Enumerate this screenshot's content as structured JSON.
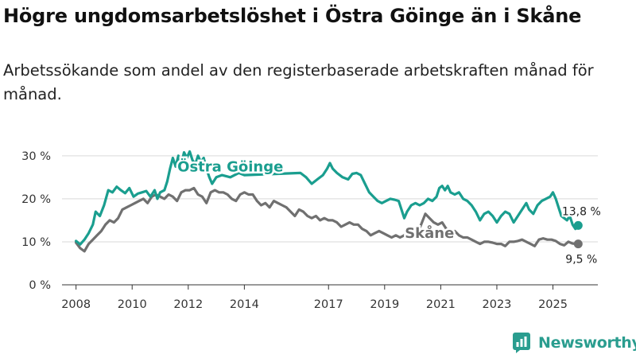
{
  "title": "Högre ungdomsarbetslöshet i Östra Göinge än i Skåne",
  "subtitle": "Arbetssökande som andel av den registerbaserade arbetskraften månad för månad.",
  "brand": {
    "name": "Newsworthy",
    "color": "#2a9d8f"
  },
  "chart_data": {
    "type": "line",
    "x_range": [
      2007.5,
      2026.6
    ],
    "ylim": [
      0,
      32
    ],
    "y_ticks": [
      0,
      10,
      20,
      30
    ],
    "y_tick_labels": [
      "0 %",
      "10 %",
      "20 %",
      "30 %"
    ],
    "x_ticks": [
      2008,
      2010,
      2012,
      2014,
      2017,
      2019,
      2021,
      2023,
      2025
    ],
    "x_tick_labels": [
      "2008",
      "2010",
      "2012",
      "2014",
      "2017",
      "2019",
      "2021",
      "2023",
      "2025"
    ],
    "grid": true,
    "series": [
      {
        "name": "Östra Göinge",
        "color": "#1a9e8f",
        "end_label": "13,8 %",
        "points": [
          [
            2008.0,
            10.2
          ],
          [
            2008.15,
            9.4
          ],
          [
            2008.3,
            10.5
          ],
          [
            2008.45,
            12.0
          ],
          [
            2008.6,
            14.0
          ],
          [
            2008.7,
            17.0
          ],
          [
            2008.85,
            16.0
          ],
          [
            2009.0,
            18.5
          ],
          [
            2009.15,
            22.0
          ],
          [
            2009.3,
            21.5
          ],
          [
            2009.45,
            22.8
          ],
          [
            2009.6,
            22.0
          ],
          [
            2009.75,
            21.3
          ],
          [
            2009.9,
            22.5
          ],
          [
            2010.05,
            20.5
          ],
          [
            2010.2,
            21.2
          ],
          [
            2010.35,
            21.5
          ],
          [
            2010.5,
            21.8
          ],
          [
            2010.65,
            20.5
          ],
          [
            2010.8,
            22.0
          ],
          [
            2010.9,
            20.0
          ],
          [
            2011.0,
            21.5
          ],
          [
            2011.15,
            22.0
          ],
          [
            2011.25,
            24.0
          ],
          [
            2011.35,
            27.0
          ],
          [
            2011.45,
            29.5
          ],
          [
            2011.55,
            27.5
          ],
          [
            2011.65,
            30.0
          ],
          [
            2011.75,
            28.0
          ],
          [
            2011.85,
            30.8
          ],
          [
            2011.95,
            29.5
          ],
          [
            2012.05,
            31.0
          ],
          [
            2012.15,
            29.0
          ],
          [
            2012.25,
            28.0
          ],
          [
            2012.35,
            30.0
          ],
          [
            2012.45,
            28.5
          ],
          [
            2012.55,
            29.5
          ],
          [
            2012.65,
            27.0
          ],
          [
            2012.75,
            25.0
          ],
          [
            2012.85,
            23.5
          ],
          [
            2013.0,
            25.0
          ],
          [
            2013.2,
            25.5
          ],
          [
            2013.5,
            25.0
          ],
          [
            2013.8,
            26.0
          ],
          [
            2014.0,
            25.5
          ],
          [
            2016.0,
            26.0
          ],
          [
            2016.2,
            25.0
          ],
          [
            2016.4,
            23.5
          ],
          [
            2016.6,
            24.5
          ],
          [
            2016.8,
            25.5
          ],
          [
            2016.95,
            27.0
          ],
          [
            2017.05,
            28.3
          ],
          [
            2017.15,
            27.0
          ],
          [
            2017.3,
            26.0
          ],
          [
            2017.5,
            25.0
          ],
          [
            2017.7,
            24.5
          ],
          [
            2017.85,
            25.8
          ],
          [
            2018.0,
            26.0
          ],
          [
            2018.15,
            25.5
          ],
          [
            2018.3,
            23.5
          ],
          [
            2018.45,
            21.5
          ],
          [
            2018.6,
            20.5
          ],
          [
            2018.75,
            19.5
          ],
          [
            2018.9,
            19.0
          ],
          [
            2019.05,
            19.5
          ],
          [
            2019.2,
            20.0
          ],
          [
            2019.35,
            19.8
          ],
          [
            2019.5,
            19.5
          ],
          [
            2019.6,
            17.5
          ],
          [
            2019.7,
            15.5
          ],
          [
            2019.8,
            17.0
          ],
          [
            2019.95,
            18.5
          ],
          [
            2020.1,
            19.0
          ],
          [
            2020.25,
            18.5
          ],
          [
            2020.4,
            19.0
          ],
          [
            2020.55,
            20.0
          ],
          [
            2020.7,
            19.5
          ],
          [
            2020.85,
            20.5
          ],
          [
            2020.95,
            22.5
          ],
          [
            2021.05,
            23.0
          ],
          [
            2021.15,
            22.0
          ],
          [
            2021.25,
            23.0
          ],
          [
            2021.35,
            21.5
          ],
          [
            2021.5,
            21.0
          ],
          [
            2021.65,
            21.5
          ],
          [
            2021.8,
            20.0
          ],
          [
            2021.95,
            19.5
          ],
          [
            2022.1,
            18.5
          ],
          [
            2022.25,
            17.0
          ],
          [
            2022.4,
            15.0
          ],
          [
            2022.55,
            16.5
          ],
          [
            2022.7,
            17.0
          ],
          [
            2022.85,
            16.0
          ],
          [
            2023.0,
            14.5
          ],
          [
            2023.15,
            16.0
          ],
          [
            2023.3,
            17.0
          ],
          [
            2023.45,
            16.5
          ],
          [
            2023.6,
            14.5
          ],
          [
            2023.75,
            16.0
          ],
          [
            2023.9,
            17.5
          ],
          [
            2024.05,
            19.0
          ],
          [
            2024.15,
            17.5
          ],
          [
            2024.3,
            16.5
          ],
          [
            2024.45,
            18.5
          ],
          [
            2024.6,
            19.5
          ],
          [
            2024.75,
            20.0
          ],
          [
            2024.9,
            20.5
          ],
          [
            2025.0,
            21.5
          ],
          [
            2025.1,
            20.0
          ],
          [
            2025.2,
            18.0
          ],
          [
            2025.3,
            16.0
          ],
          [
            2025.4,
            15.5
          ],
          [
            2025.5,
            15.0
          ],
          [
            2025.6,
            16.0
          ],
          [
            2025.7,
            14.0
          ],
          [
            2025.8,
            13.0
          ],
          [
            2025.9,
            13.8
          ]
        ]
      },
      {
        "name": "Skåne",
        "color": "#707070",
        "end_label": "9,5 %",
        "points": [
          [
            2008.0,
            9.8
          ],
          [
            2008.15,
            8.5
          ],
          [
            2008.3,
            7.8
          ],
          [
            2008.45,
            9.5
          ],
          [
            2008.6,
            10.5
          ],
          [
            2008.75,
            11.5
          ],
          [
            2008.9,
            12.5
          ],
          [
            2009.05,
            14.0
          ],
          [
            2009.2,
            15.0
          ],
          [
            2009.35,
            14.5
          ],
          [
            2009.5,
            15.5
          ],
          [
            2009.65,
            17.5
          ],
          [
            2009.8,
            18.0
          ],
          [
            2009.95,
            18.5
          ],
          [
            2010.1,
            19.0
          ],
          [
            2010.25,
            19.5
          ],
          [
            2010.4,
            20.0
          ],
          [
            2010.55,
            19.0
          ],
          [
            2010.7,
            20.5
          ],
          [
            2010.85,
            21.0
          ],
          [
            2011.0,
            20.5
          ],
          [
            2011.15,
            20.0
          ],
          [
            2011.3,
            21.0
          ],
          [
            2011.45,
            20.5
          ],
          [
            2011.6,
            19.5
          ],
          [
            2011.75,
            21.5
          ],
          [
            2011.9,
            22.0
          ],
          [
            2012.05,
            22.0
          ],
          [
            2012.2,
            22.5
          ],
          [
            2012.35,
            21.0
          ],
          [
            2012.5,
            20.5
          ],
          [
            2012.65,
            19.0
          ],
          [
            2012.8,
            21.5
          ],
          [
            2012.95,
            22.0
          ],
          [
            2013.1,
            21.5
          ],
          [
            2013.25,
            21.5
          ],
          [
            2013.4,
            21.0
          ],
          [
            2013.55,
            20.0
          ],
          [
            2013.7,
            19.5
          ],
          [
            2013.85,
            21.0
          ],
          [
            2014.0,
            21.5
          ],
          [
            2014.15,
            21.0
          ],
          [
            2014.3,
            21.0
          ],
          [
            2014.45,
            19.5
          ],
          [
            2014.6,
            18.5
          ],
          [
            2014.75,
            19.0
          ],
          [
            2014.9,
            18.0
          ],
          [
            2015.05,
            19.5
          ],
          [
            2015.2,
            19.0
          ],
          [
            2015.35,
            18.5
          ],
          [
            2015.5,
            18.0
          ],
          [
            2015.65,
            17.0
          ],
          [
            2015.8,
            16.0
          ],
          [
            2015.95,
            17.5
          ],
          [
            2016.1,
            17.0
          ],
          [
            2016.25,
            16.0
          ],
          [
            2016.4,
            15.5
          ],
          [
            2016.55,
            16.0
          ],
          [
            2016.7,
            15.0
          ],
          [
            2016.85,
            15.5
          ],
          [
            2017.0,
            15.0
          ],
          [
            2017.15,
            15.0
          ],
          [
            2017.3,
            14.5
          ],
          [
            2017.45,
            13.5
          ],
          [
            2017.6,
            14.0
          ],
          [
            2017.75,
            14.5
          ],
          [
            2017.9,
            14.0
          ],
          [
            2018.05,
            14.0
          ],
          [
            2018.2,
            13.0
          ],
          [
            2018.35,
            12.5
          ],
          [
            2018.5,
            11.5
          ],
          [
            2018.65,
            12.0
          ],
          [
            2018.8,
            12.5
          ],
          [
            2018.95,
            12.0
          ],
          [
            2019.1,
            11.5
          ],
          [
            2019.25,
            11.0
          ],
          [
            2019.4,
            11.5
          ],
          [
            2019.55,
            11.0
          ],
          [
            2019.7,
            11.5
          ],
          [
            2019.85,
            12.5
          ],
          [
            2020.0,
            12.0
          ],
          [
            2020.15,
            11.5
          ],
          [
            2020.3,
            14.0
          ],
          [
            2020.45,
            16.5
          ],
          [
            2020.6,
            15.5
          ],
          [
            2020.75,
            14.5
          ],
          [
            2020.9,
            14.0
          ],
          [
            2021.05,
            14.5
          ],
          [
            2021.2,
            13.0
          ],
          [
            2021.35,
            12.0
          ],
          [
            2021.5,
            12.5
          ],
          [
            2021.65,
            11.5
          ],
          [
            2021.8,
            11.0
          ],
          [
            2021.95,
            11.0
          ],
          [
            2022.1,
            10.5
          ],
          [
            2022.25,
            10.0
          ],
          [
            2022.4,
            9.5
          ],
          [
            2022.55,
            10.0
          ],
          [
            2022.7,
            10.0
          ],
          [
            2022.85,
            9.8
          ],
          [
            2023.0,
            9.5
          ],
          [
            2023.15,
            9.5
          ],
          [
            2023.3,
            9.0
          ],
          [
            2023.45,
            10.0
          ],
          [
            2023.6,
            10.0
          ],
          [
            2023.75,
            10.2
          ],
          [
            2023.9,
            10.5
          ],
          [
            2024.05,
            10.0
          ],
          [
            2024.2,
            9.5
          ],
          [
            2024.35,
            9.0
          ],
          [
            2024.5,
            10.5
          ],
          [
            2024.65,
            10.8
          ],
          [
            2024.8,
            10.5
          ],
          [
            2024.95,
            10.5
          ],
          [
            2025.1,
            10.2
          ],
          [
            2025.25,
            9.5
          ],
          [
            2025.4,
            9.2
          ],
          [
            2025.55,
            10.0
          ],
          [
            2025.7,
            9.6
          ],
          [
            2025.8,
            9.5
          ],
          [
            2025.9,
            9.5
          ]
        ]
      }
    ],
    "annotations": [
      {
        "text": "Östra Göinge",
        "series": 0,
        "x": 2013.5,
        "y": 27.5
      },
      {
        "text": "Skåne",
        "series": 1,
        "x": 2020.6,
        "y": 12.0
      }
    ]
  }
}
